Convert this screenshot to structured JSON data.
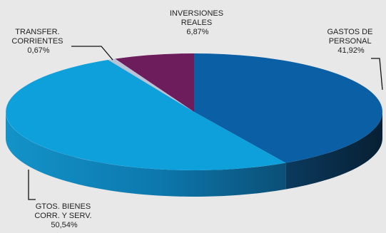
{
  "chart_data": {
    "type": "pie",
    "title": "",
    "slices": [
      {
        "name_lines": [
          "GASTOS DE",
          "PERSONAL"
        ],
        "value_label": "41,92%",
        "value": 41.92,
        "color": "#0a5fa5"
      },
      {
        "name_lines": [
          "GTOS. BIENES",
          "CORR. Y SERV."
        ],
        "value_label": "50,54%",
        "value": 50.54,
        "color": "#0ea0db"
      },
      {
        "name_lines": [
          "TRANSFER.",
          "CORRIENTES"
        ],
        "value_label": "0,67%",
        "value": 0.67,
        "color": "#b9c3d6"
      },
      {
        "name_lines": [
          "INVERSIONES",
          "REALES"
        ],
        "value_label": "6,87%",
        "value": 6.87,
        "color": "#6d1c5c"
      }
    ]
  }
}
